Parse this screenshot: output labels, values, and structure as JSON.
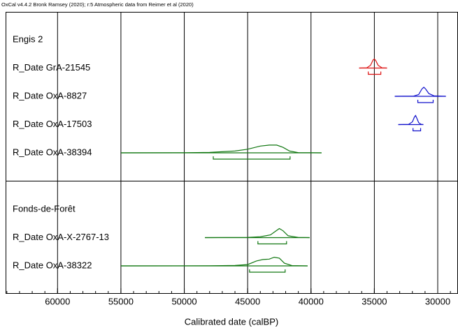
{
  "chart_data": {
    "type": "oxcal",
    "title": "OxCal v4.4.2 Bronk Ramsey (2020); r:5 Atmospheric data from Reimer et al (2020)",
    "x_label": "Calibrated date (calBP)",
    "xlim": [
      64100,
      28400
    ],
    "xticks": [
      60000,
      55000,
      50000,
      45000,
      40000,
      35000,
      30000
    ],
    "xminor": 1000,
    "grid": true,
    "groups": [
      {
        "name": "Engis 2",
        "dates": [
          {
            "name": "R_Date GrA-21545",
            "color": "#dd1111",
            "plot_range": [
              36200,
              34000
            ],
            "range_95": [
              35480,
              34490
            ],
            "density_x": [
              36200,
              35600,
              35300,
              35100,
              35000,
              34900,
              34700,
              34400,
              34000
            ],
            "density": [
              0,
              0.02,
              0.3,
              0.9,
              1,
              0.85,
              0.3,
              0.02,
              0
            ]
          },
          {
            "name": "R_Date OxA-8827",
            "color": "#1111cc",
            "plot_range": [
              33390,
              29360
            ],
            "range_95": [
              31570,
              30360
            ],
            "density_x": [
              33390,
              31900,
              31500,
              31250,
              31100,
              30950,
              30700,
              30300,
              29360
            ],
            "density": [
              0,
              0.02,
              0.2,
              0.8,
              1,
              0.8,
              0.3,
              0.05,
              0
            ]
          },
          {
            "name": "R_Date OxA-17503",
            "color": "#1111cc",
            "plot_range": [
              33110,
              31130
            ],
            "range_95": [
              31950,
              31350
            ],
            "density_x": [
              33110,
              32300,
              32000,
              31850,
              31750,
              31650,
              31500,
              31300,
              31130
            ],
            "density": [
              0,
              0.02,
              0.3,
              0.8,
              1,
              0.7,
              0.2,
              0.02,
              0
            ]
          },
          {
            "name": "R_Date OxA-38394",
            "color": "#117711",
            "plot_range": [
              54990,
              39170
            ],
            "range_95": [
              47710,
              41650
            ],
            "density_x": [
              54990,
              50000,
              48000,
              46000,
              45000,
              44000,
              43300,
              42700,
              42200,
              41700,
              41000,
              39170
            ],
            "density": [
              0,
              0.01,
              0.05,
              0.2,
              0.4,
              0.75,
              0.85,
              0.85,
              0.6,
              0.2,
              0.02,
              0
            ]
          }
        ]
      },
      {
        "name": "Fonds-de-Forêt",
        "dates": [
          {
            "name": "R_Date OxA-X-2767-13",
            "color": "#117711",
            "plot_range": [
              48370,
              40110
            ],
            "range_95": [
              44190,
              41930
            ],
            "density_x": [
              48370,
              45000,
              44000,
              43200,
              42800,
              42500,
              42200,
              41800,
              41000,
              40110
            ],
            "density": [
              0,
              0.02,
              0.1,
              0.3,
              0.7,
              1,
              0.75,
              0.2,
              0.02,
              0
            ]
          },
          {
            "name": "R_Date OxA-38322",
            "color": "#117711",
            "plot_range": [
              54990,
              40270
            ],
            "range_95": [
              44850,
              42040
            ],
            "density_x": [
              54990,
              48000,
              46000,
              45000,
              44300,
              43800,
              43300,
              42900,
              42500,
              42100,
              41500,
              40270
            ],
            "density": [
              0,
              0.01,
              0.05,
              0.15,
              0.55,
              0.7,
              0.75,
              0.95,
              0.85,
              0.3,
              0.03,
              0
            ]
          }
        ]
      }
    ]
  }
}
